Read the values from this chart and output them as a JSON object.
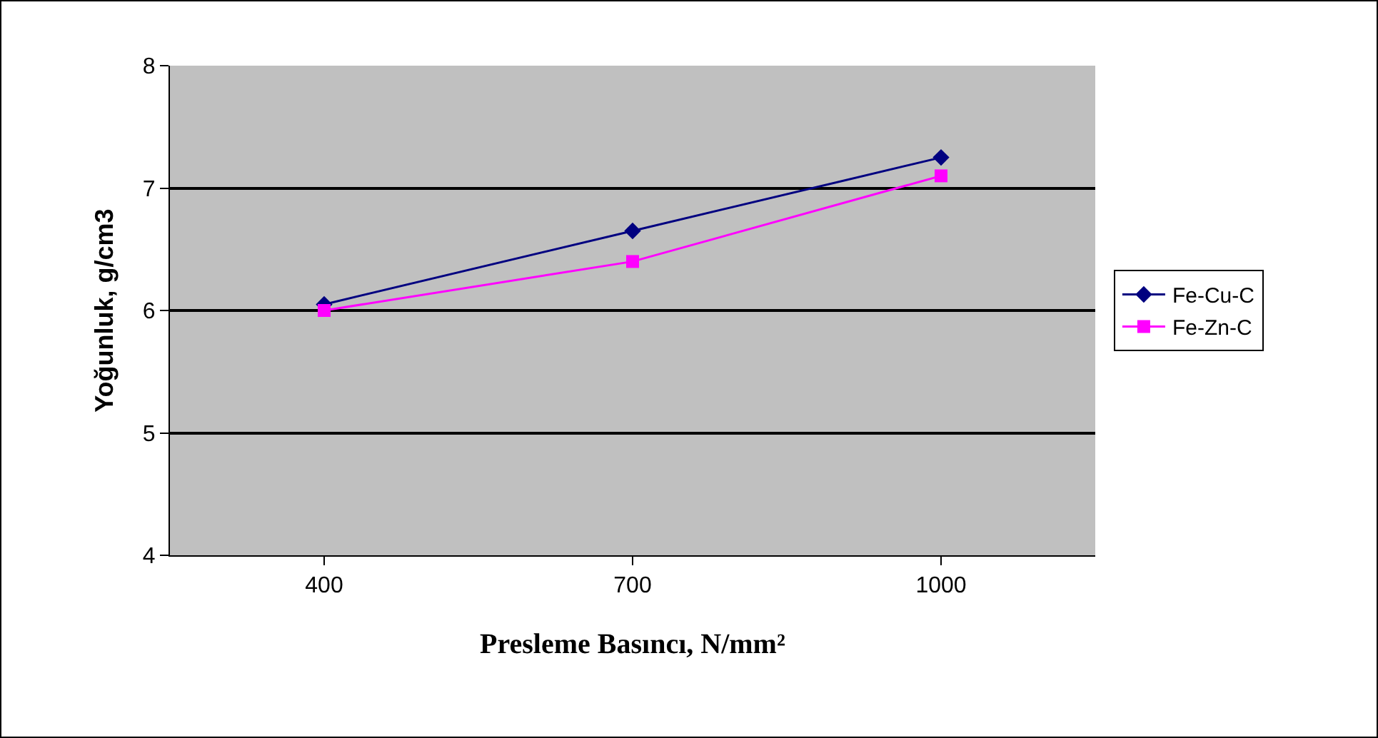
{
  "chart_data": {
    "type": "line",
    "xlabel": "Presleme Basıncı, N/mm²",
    "ylabel": "Yoğunluk, g/cm3",
    "categories": [
      "400",
      "700",
      "1000"
    ],
    "series": [
      {
        "name": "Fe-Cu-C",
        "color": "#000080",
        "marker": "diamond",
        "values": [
          6.05,
          6.65,
          7.25
        ]
      },
      {
        "name": "Fe-Zn-C",
        "color": "#ff00ff",
        "marker": "square",
        "values": [
          6.0,
          6.4,
          7.1
        ]
      }
    ],
    "ylim": [
      4,
      8
    ],
    "yticks": [
      4,
      5,
      6,
      7,
      8
    ],
    "grid": "y",
    "legend": "right",
    "line_style": "solid"
  }
}
